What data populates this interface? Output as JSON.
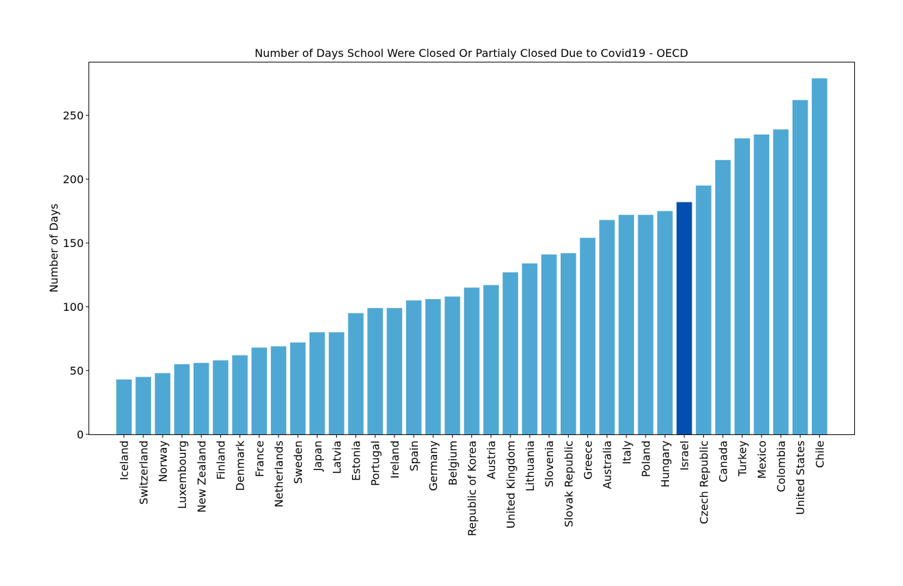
{
  "chart_data": {
    "type": "bar",
    "title": "Number of Days School Were Closed Or Partialy Closed Due to Covid19 - OECD",
    "xlabel": "",
    "ylabel": "Number of Days",
    "ylim": [
      0,
      292
    ],
    "yticks": [
      0,
      50,
      100,
      150,
      200,
      250
    ],
    "grid": false,
    "legend": "none",
    "colors": {
      "default": "#4fa8d4",
      "highlight": "#034fb0"
    },
    "highlight_category": "Israel",
    "categories": [
      "Iceland",
      "Switzerland",
      "Norway",
      "Luxembourg",
      "New Zealand",
      "Finland",
      "Denmark",
      "France",
      "Netherlands",
      "Sweden",
      "Japan",
      "Latvia",
      "Estonia",
      "Portugal",
      "Ireland",
      "Spain",
      "Germany",
      "Belgium",
      "Republic of Korea",
      "Austria",
      "United Kingdom",
      "Lithuania",
      "Slovenia",
      "Slovak Republic",
      "Greece",
      "Australia",
      "Italy",
      "Poland",
      "Hungary",
      "Israel",
      "Czech Republic",
      "Canada",
      "Turkey",
      "Mexico",
      "Colombia",
      "United States",
      "Chile"
    ],
    "values": [
      43,
      45,
      48,
      55,
      56,
      58,
      62,
      68,
      69,
      72,
      80,
      80,
      95,
      99,
      99,
      105,
      106,
      108,
      115,
      117,
      127,
      134,
      141,
      142,
      154,
      168,
      172,
      172,
      175,
      182,
      195,
      215,
      232,
      235,
      239,
      262,
      279
    ]
  }
}
